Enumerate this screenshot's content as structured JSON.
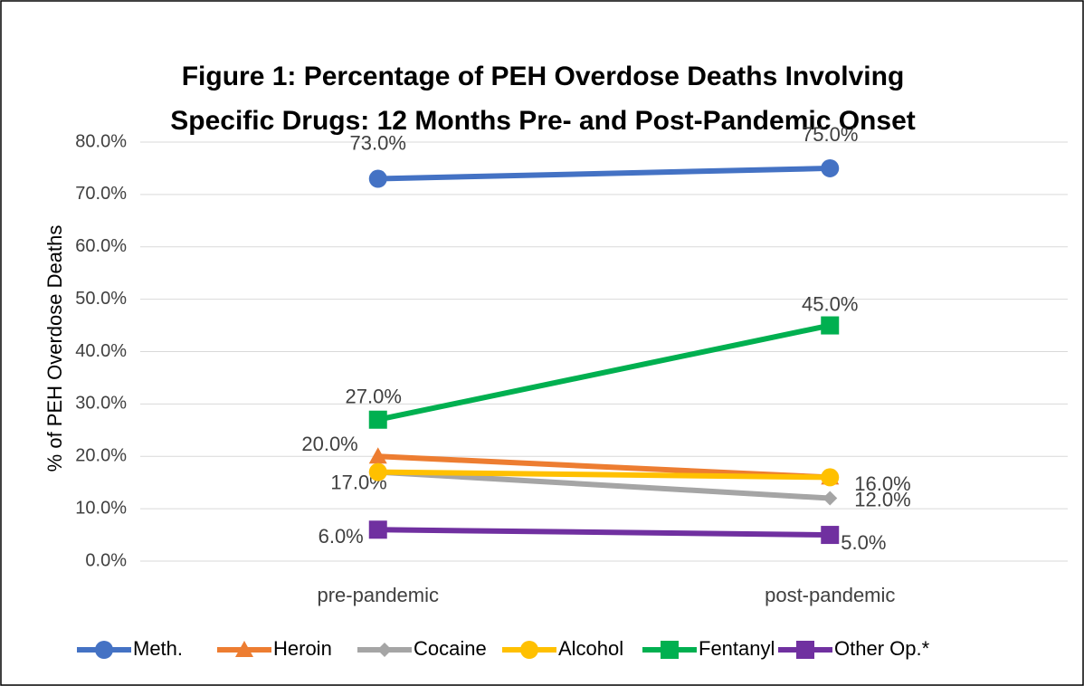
{
  "chart_data": {
    "type": "line",
    "title": [
      "Figure 1: Percentage of PEH Overdose Deaths Involving",
      "Specific Drugs: 12 Months Pre- and Post-Pandemic Onset"
    ],
    "y_label": "% of PEH Overdose Deaths",
    "categories": [
      "pre-pandemic",
      "post-pandemic"
    ],
    "ylim": [
      0,
      80
    ],
    "yticks": [
      {
        "value": 0,
        "label": "0.0%"
      },
      {
        "value": 10,
        "label": "10.0%"
      },
      {
        "value": 20,
        "label": "20.0%"
      },
      {
        "value": 30,
        "label": "30.0%"
      },
      {
        "value": 40,
        "label": "40.0%"
      },
      {
        "value": 50,
        "label": "50.0%"
      },
      {
        "value": 60,
        "label": "60.0%"
      },
      {
        "value": 70,
        "label": "70.0%"
      },
      {
        "value": 80,
        "label": "80.0%"
      }
    ],
    "grid": true,
    "legend": "bottom",
    "series": [
      {
        "name": "Meth.",
        "color": "#4472c4",
        "marker": "circle",
        "values": [
          73,
          75
        ],
        "value_labels": [
          "73.0%",
          "75.0%"
        ]
      },
      {
        "name": "Heroin",
        "color": "#ed7d31",
        "marker": "triangle",
        "values": [
          20,
          16
        ],
        "value_labels": [
          "20.0%",
          null
        ]
      },
      {
        "name": "Cocaine",
        "color": "#a5a5a5",
        "marker": "diamond",
        "values": [
          17,
          12
        ],
        "value_labels": [
          "17.0%",
          "12.0%"
        ]
      },
      {
        "name": "Alcohol",
        "color": "#ffc000",
        "marker": "circle",
        "values": [
          17,
          16
        ],
        "value_labels": [
          null,
          "16.0%"
        ]
      },
      {
        "name": "Fentanyl",
        "color": "#00b050",
        "marker": "square",
        "values": [
          27,
          45
        ],
        "value_labels": [
          "27.0%",
          "45.0%"
        ]
      },
      {
        "name": "Other Op.*",
        "color": "#7030a0",
        "marker": "square",
        "values": [
          6,
          5
        ],
        "value_labels": [
          "6.0%",
          "5.0%"
        ]
      }
    ]
  }
}
